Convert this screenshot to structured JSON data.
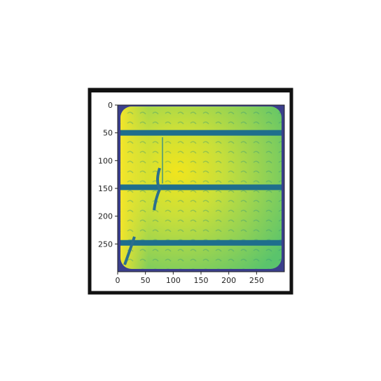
{
  "chart_data": {
    "type": "heatmap",
    "title": "",
    "xlabel": "",
    "ylabel": "",
    "xlim": [
      0,
      300
    ],
    "ylim": [
      300,
      0
    ],
    "x_ticks": [
      "0",
      "50",
      "100",
      "150",
      "200",
      "250"
    ],
    "y_ticks": [
      "0",
      "50",
      "100",
      "150",
      "200",
      "250"
    ],
    "colormap": "viridis",
    "content": "electroluminescence image of a solar cell with three horizontal busbars and a dark crack",
    "busbar_rows": [
      50,
      148,
      248
    ],
    "grid": false,
    "legend": "none"
  },
  "colors": {
    "frame_border": "#111111",
    "busbar": "#1f6e8c",
    "corner": "#3b3f8c",
    "bright": "#e4e51c",
    "mid": "#a6d84a",
    "teal": "#3ca57d"
  }
}
